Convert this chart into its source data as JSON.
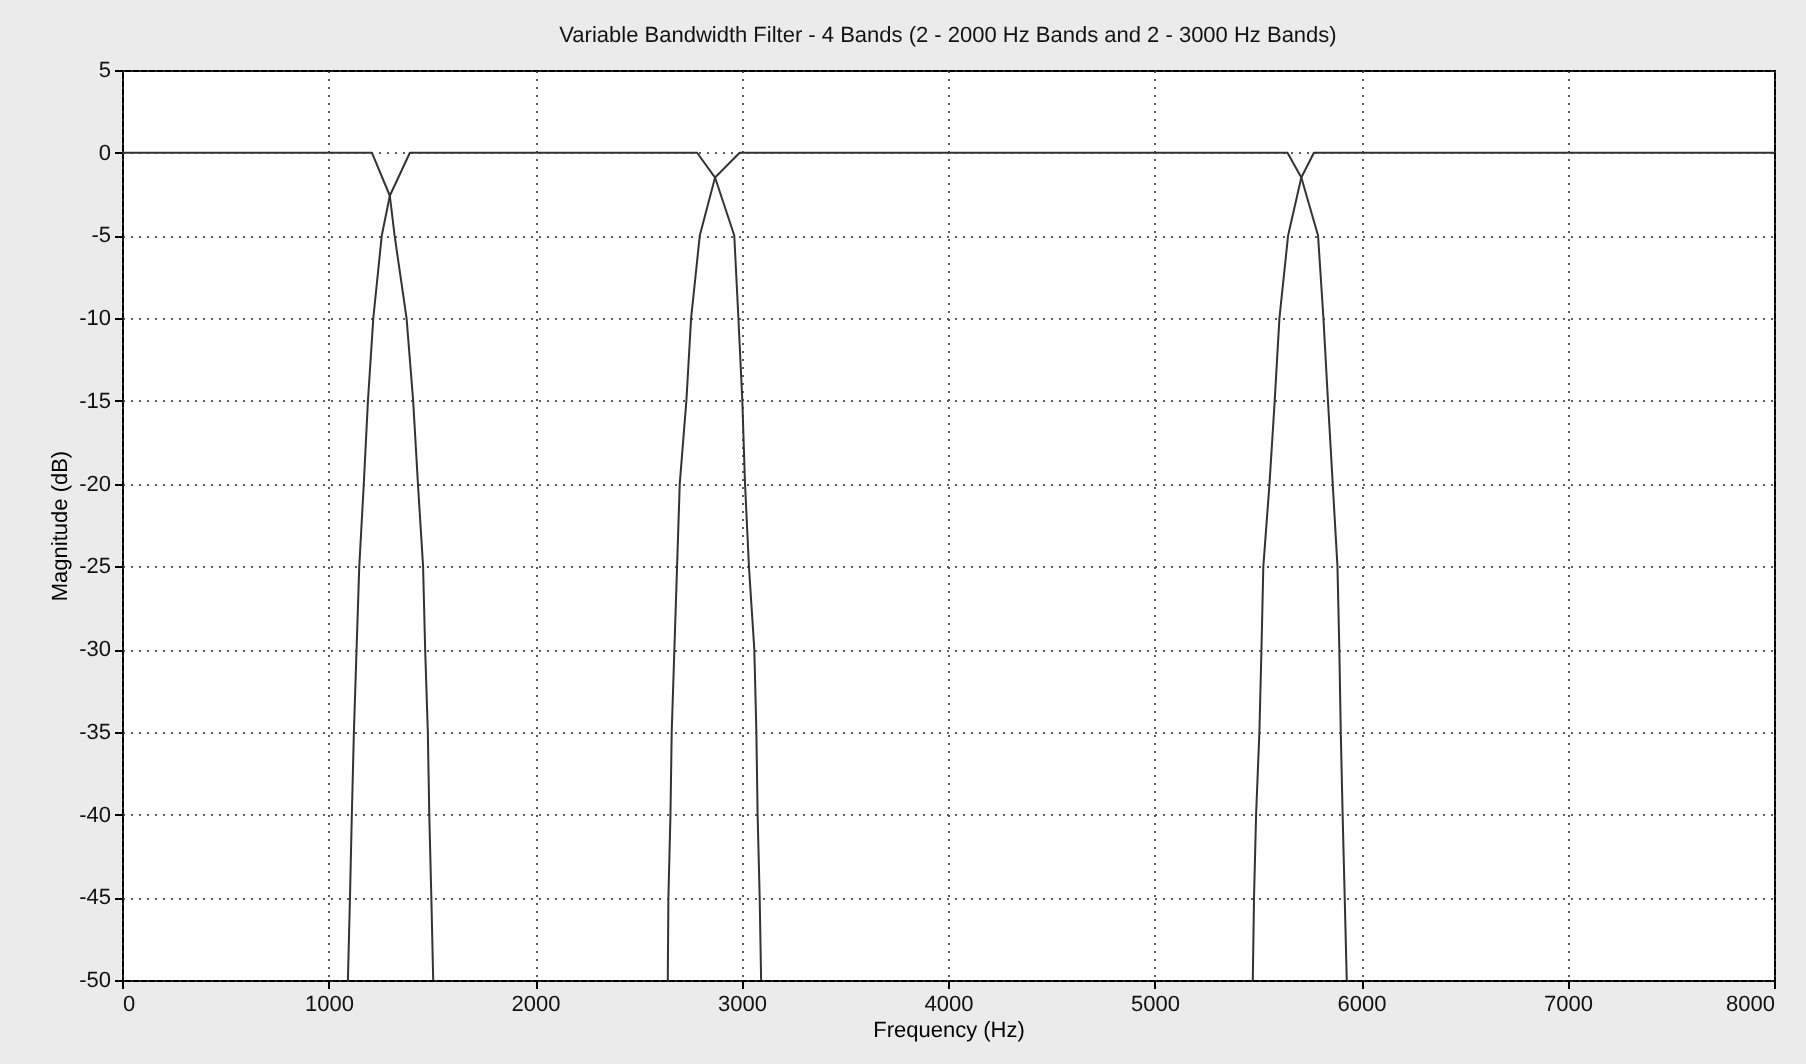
{
  "chart_data": {
    "type": "line",
    "title": "Variable Bandwidth Filter - 4 Bands (2 - 2000 Hz Bands and 2 - 3000 Hz Bands)",
    "xlabel": "Frequency (Hz)",
    "ylabel": "Magnitude (dB)",
    "xlim": [
      0,
      8000
    ],
    "xticks": [
      0,
      1000,
      2000,
      3000,
      4000,
      5000,
      6000,
      7000,
      8000
    ],
    "ylim": [
      -50,
      5
    ],
    "yticks": [
      -50,
      -45,
      -40,
      -35,
      -30,
      -25,
      -20,
      -15,
      -10,
      -5,
      0,
      5
    ],
    "grid": true,
    "legend": false,
    "marker": "none",
    "line_style": "solid",
    "series": [
      {
        "color": "#333333",
        "x": [
          0,
          1210,
          1297,
          1320,
          1378,
          1410,
          1433,
          1458,
          1468,
          1481,
          1488,
          1498,
          1507
        ],
        "values": [
          0,
          0,
          -2.6,
          -5,
          -10,
          -15,
          -20,
          -25,
          -30,
          -35,
          -40,
          -45,
          -50
        ]
      },
      {
        "color": "#333333",
        "x": [
          1094,
          1104,
          1113,
          1123,
          1136,
          1149,
          1171,
          1191,
          1217,
          1258,
          1297,
          1394,
          2785,
          2872,
          2965,
          2985,
          3004,
          3017,
          3036,
          3062,
          3072,
          3078,
          3088,
          3095
        ],
        "values": [
          -50,
          -45,
          -40,
          -35,
          -30,
          -25,
          -20,
          -15,
          -10,
          -5,
          -2.6,
          0,
          0,
          -1.5,
          -5,
          -10,
          -15,
          -20,
          -25,
          -30,
          -35,
          -40,
          -45,
          -50
        ]
      },
      {
        "color": "#333333",
        "x": [
          2643,
          2646,
          2656,
          2662,
          2675,
          2688,
          2701,
          2733,
          2756,
          2798,
          2872,
          2991,
          5644,
          5711,
          5792,
          5818,
          5840,
          5863,
          5886,
          5895,
          5902,
          5911,
          5921,
          5931
        ],
        "values": [
          -50,
          -45,
          -40,
          -35,
          -30,
          -25,
          -20,
          -15,
          -10,
          -5,
          -1.5,
          0,
          0,
          -1.5,
          -5,
          -10,
          -15,
          -20,
          -25,
          -30,
          -35,
          -40,
          -45,
          -50
        ]
      },
      {
        "color": "#333333",
        "x": [
          5476,
          5482,
          5492,
          5508,
          5518,
          5527,
          5557,
          5582,
          5605,
          5647,
          5711,
          5772,
          8000
        ],
        "values": [
          -50,
          -45,
          -40,
          -35,
          -30,
          -25,
          -20,
          -15,
          -10,
          -5,
          -1.5,
          0,
          0
        ]
      }
    ]
  }
}
